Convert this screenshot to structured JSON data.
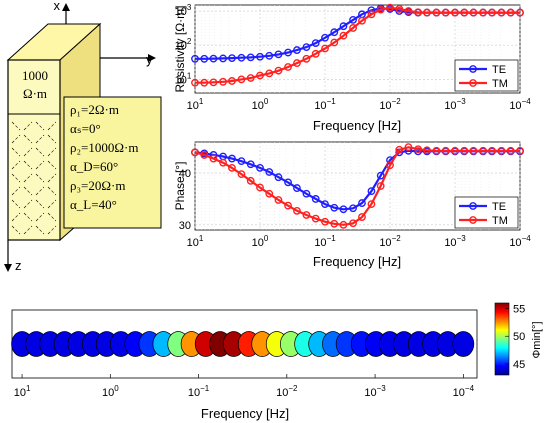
{
  "model": {
    "axis_x": "x",
    "axis_y": "y",
    "axis_z": "z",
    "top_value": "1000",
    "top_unit": "Ω·m",
    "params": [
      "ρ₁=2Ω·m",
      "αₛ=0°",
      "ρ₂=1000Ω·m",
      "α_D=60°",
      "ρ₃=20Ω·m",
      "α_L=40°"
    ],
    "colors": {
      "box_fill": "#fdfabf",
      "box_top": "#fff7a8",
      "box_side": "#eee07e"
    }
  },
  "chart_data": [
    {
      "type": "line",
      "ylabel": "Resistivity [Ω·m]",
      "xlabel": "Frequency [Hz]",
      "x_scale": "log-reversed",
      "xlim": [
        10,
        0.0001
      ],
      "ylim": [
        4,
        1500
      ],
      "y_scale": "log",
      "xticks": [
        "10^1",
        "10^0",
        "10^-1",
        "10^-2",
        "10^-3",
        "10^-4"
      ],
      "yticks": [
        "10^1",
        "10^2",
        "10^3"
      ],
      "grid": true,
      "legend": "bottom-right",
      "x": [
        10,
        7.2,
        5.2,
        3.7,
        2.7,
        1.93,
        1.39,
        1.0,
        0.72,
        0.52,
        0.37,
        0.27,
        0.193,
        0.139,
        0.1,
        0.072,
        0.052,
        0.037,
        0.027,
        0.0193,
        0.0139,
        0.01,
        0.0072,
        0.0052,
        0.0037,
        0.0027,
        0.00193,
        0.00139,
        0.001,
        0.00072,
        0.00052,
        0.00037,
        0.00027,
        0.000193,
        0.000139,
        0.0001
      ],
      "series": [
        {
          "name": "TE",
          "color": "#1f1fff",
          "values": [
            40,
            40,
            40.5,
            41,
            42,
            43,
            44,
            46,
            49,
            54,
            61,
            72,
            88,
            115,
            165,
            240,
            360,
            550,
            800,
            1050,
            1200,
            1150,
            1000,
            930,
            900,
            900,
            900,
            900,
            900,
            900,
            900,
            900,
            900,
            900,
            900,
            900
          ]
        },
        {
          "name": "TM",
          "color": "#ff2020",
          "values": [
            8,
            8,
            8.2,
            8.5,
            9,
            10,
            11,
            13,
            15,
            18,
            23,
            30,
            40,
            56,
            80,
            120,
            190,
            320,
            520,
            800,
            1100,
            1250,
            1150,
            1000,
            920,
            900,
            900,
            900,
            900,
            900,
            900,
            900,
            900,
            900,
            900,
            900
          ]
        }
      ]
    },
    {
      "type": "line",
      "ylabel": "Phase [°]",
      "xlabel": "Frequency [Hz]",
      "x_scale": "log-reversed",
      "xlim": [
        10,
        0.0001
      ],
      "ylim": [
        29,
        46
      ],
      "yticks": [
        30,
        40
      ],
      "xticks": [
        "10^1",
        "10^0",
        "10^-1",
        "10^-2",
        "10^-3",
        "10^-4"
      ],
      "grid": true,
      "legend": "bottom-right",
      "x": [
        10,
        7.2,
        5.2,
        3.7,
        2.7,
        1.93,
        1.39,
        1.0,
        0.72,
        0.52,
        0.37,
        0.27,
        0.193,
        0.139,
        0.1,
        0.072,
        0.052,
        0.037,
        0.027,
        0.0193,
        0.0139,
        0.01,
        0.0072,
        0.0052,
        0.0037,
        0.0027,
        0.00193,
        0.00139,
        0.001,
        0.00072,
        0.00052,
        0.00037,
        0.00027,
        0.000193,
        0.000139,
        0.0001
      ],
      "series": [
        {
          "name": "TE",
          "color": "#1f1fff",
          "values": [
            44,
            43.8,
            43.5,
            43.2,
            42.8,
            42.3,
            41.7,
            41,
            40.2,
            39.2,
            38.2,
            37.1,
            36,
            35,
            34,
            33.3,
            33,
            33.2,
            34.2,
            36.5,
            39.5,
            42.5,
            44,
            44.3,
            44.2,
            44.2,
            44.2,
            44.2,
            44.2,
            44.2,
            44.2,
            44.2,
            44.2,
            44.2,
            44.2,
            44.2
          ]
        },
        {
          "name": "TM",
          "color": "#ff2020",
          "values": [
            44,
            43.5,
            42.8,
            42,
            41,
            39.8,
            38.5,
            37.2,
            36,
            34.8,
            33.7,
            32.7,
            31.9,
            31.2,
            30.6,
            30.2,
            30,
            30.3,
            31.5,
            34,
            37.5,
            41.5,
            44.5,
            45,
            44.6,
            44.4,
            44.3,
            44.3,
            44.3,
            44.3,
            44.3,
            44.3,
            44.3,
            44.3,
            44.3,
            44.3
          ]
        }
      ]
    },
    {
      "type": "scatter",
      "xlabel": "Frequency [Hz]",
      "x_scale": "log-reversed",
      "xlim": [
        13,
        7e-05
      ],
      "xticks": [
        "10^1",
        "10^0",
        "10^-1",
        "10^-2",
        "10^-3",
        "10^-4"
      ],
      "colorbar_label": "Φmin[°]",
      "clim": [
        43,
        56
      ],
      "colorbar_ticks": [
        45,
        50,
        55
      ],
      "x": [
        10,
        6.9,
        4.8,
        3.3,
        2.3,
        1.58,
        1.1,
        0.76,
        0.52,
        0.36,
        0.25,
        0.17,
        0.12,
        0.083,
        0.057,
        0.04,
        0.027,
        0.019,
        0.013,
        0.009,
        0.0062,
        0.0043,
        0.003,
        0.0021,
        0.00142,
        0.00098,
        0.00068,
        0.00047,
        0.00032,
        0.00022,
        0.00015,
        0.0001
      ],
      "phi_min": [
        44.2,
        44.2,
        44.2,
        44.2,
        44.2,
        44.2,
        44.2,
        44.3,
        44.6,
        45.3,
        47,
        49.5,
        52.5,
        55,
        56,
        55.5,
        54,
        52.5,
        51,
        49.8,
        48.2,
        47,
        46,
        45.3,
        44.8,
        44.5,
        44.3,
        44.2,
        44.2,
        44.2,
        44.2,
        44.2
      ]
    }
  ]
}
